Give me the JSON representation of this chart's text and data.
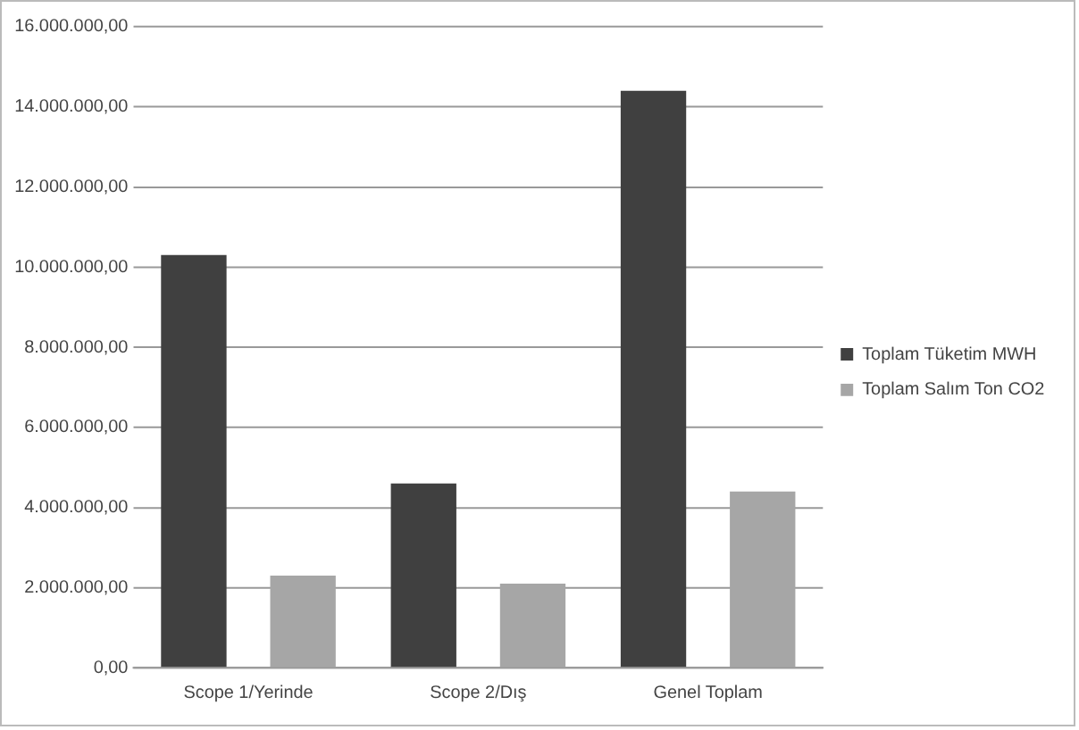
{
  "chart_data": {
    "type": "bar",
    "categories": [
      "Scope 1/Yerinde",
      "Scope 2/Dış",
      "Genel Toplam"
    ],
    "series": [
      {
        "name": "Toplam Tüketim MWH",
        "color": "#404040",
        "values": [
          10300000,
          4600000,
          14400000
        ]
      },
      {
        "name": "Toplam Salım Ton CO2",
        "color": "#a6a6a6",
        "values": [
          2300000,
          2100000,
          4400000
        ]
      }
    ],
    "ylim": [
      0,
      16000000
    ],
    "yticks": [
      {
        "value": 0,
        "label": "0,00"
      },
      {
        "value": 2000000,
        "label": "2.000.000,00"
      },
      {
        "value": 4000000,
        "label": "4.000.000,00"
      },
      {
        "value": 6000000,
        "label": "6.000.000,00"
      },
      {
        "value": 8000000,
        "label": "8.000.000,00"
      },
      {
        "value": 10000000,
        "label": "10.000.000,00"
      },
      {
        "value": 12000000,
        "label": "12.000.000,00"
      },
      {
        "value": 14000000,
        "label": "14.000.000,00"
      },
      {
        "value": 16000000,
        "label": "16.000.000,00"
      }
    ],
    "grid": "y",
    "legend": "right"
  }
}
